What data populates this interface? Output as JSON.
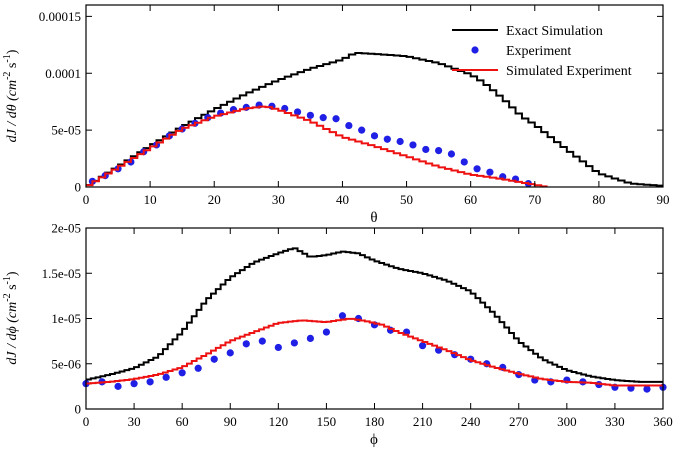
{
  "colors": {
    "exact": "#000000",
    "experiment": "#1f1fe6",
    "simulated": "#ee1111"
  },
  "legend": {
    "exact": "Exact Simulation",
    "experiment": "Experiment",
    "simulated": "Simulated Experiment"
  },
  "chart_data": [
    {
      "type": "line",
      "id": "theta",
      "xlabel": "θ",
      "ylabel_main": "dJ / dθ (cm",
      "ylabel_exp1": "-2",
      "ylabel_mid": " s",
      "ylabel_exp2": "-1",
      "ylabel_end": ")",
      "xlim": [
        0,
        90
      ],
      "ylim": [
        0,
        0.00016
      ],
      "xticks": [
        0,
        10,
        20,
        30,
        40,
        50,
        60,
        70,
        80,
        90
      ],
      "xtick_labels": [
        "0",
        "10",
        "20",
        "30",
        "40",
        "50",
        "60",
        "70",
        "80",
        "90"
      ],
      "yticks": [
        0,
        5e-05,
        0.0001,
        0.00015
      ],
      "ytick_labels": [
        "0",
        "5e-05",
        "0.0001",
        "0.00015"
      ],
      "legend_position": "top-right",
      "series": [
        {
          "name": "Exact Simulation",
          "style": "step",
          "x": [
            0,
            5,
            10,
            15,
            20,
            25,
            30,
            35,
            40,
            42,
            45,
            50,
            55,
            60,
            62,
            65,
            68,
            70,
            72,
            75,
            80,
            85,
            90
          ],
          "y": [
            0,
            1.8e-05,
            3.6e-05,
            5.3e-05,
            6.8e-05,
            8.2e-05,
            9.4e-05,
            0.000104,
            0.000112,
            0.000118,
            0.000117,
            0.000115,
            0.000109,
            9.9e-05,
            9.2e-05,
            7.8e-05,
            6.2e-05,
            5.5e-05,
            4.6e-05,
            3.3e-05,
            1.2e-05,
            3e-06,
            1e-06
          ]
        },
        {
          "name": "Experiment",
          "style": "points",
          "x": [
            1,
            3,
            5,
            7,
            9,
            11,
            13,
            15,
            17,
            19,
            21,
            23,
            25,
            27,
            29,
            31,
            33,
            35,
            37,
            39,
            41,
            43,
            45,
            47,
            49,
            51,
            53,
            55,
            57,
            59,
            61,
            63,
            65,
            67,
            69
          ],
          "y": [
            5e-06,
            1e-05,
            1.6e-05,
            2.2e-05,
            3.1e-05,
            3.7e-05,
            4.5e-05,
            5.1e-05,
            5.6e-05,
            6.1e-05,
            6.5e-05,
            6.8e-05,
            7e-05,
            7.2e-05,
            7.1e-05,
            6.9e-05,
            6.6e-05,
            6.3e-05,
            6.1e-05,
            6e-05,
            5.4e-05,
            5e-05,
            4.5e-05,
            4.2e-05,
            4e-05,
            3.7e-05,
            3.3e-05,
            3.2e-05,
            2.9e-05,
            2.2e-05,
            1.6e-05,
            1.3e-05,
            9e-06,
            7e-06,
            3e-06
          ]
        },
        {
          "name": "Simulated Experiment",
          "style": "step",
          "x": [
            0,
            5,
            10,
            15,
            20,
            25,
            28,
            30,
            35,
            40,
            45,
            50,
            55,
            60,
            65,
            70,
            72
          ],
          "y": [
            0,
            1.7e-05,
            3.4e-05,
            5.1e-05,
            6.2e-05,
            6.9e-05,
            7.1e-05,
            6.8e-05,
            5.8e-05,
            4.4e-05,
            3.6e-05,
            2.7e-05,
            1.8e-05,
            1.1e-05,
            7e-06,
            2e-06,
            0
          ]
        }
      ]
    },
    {
      "type": "line",
      "id": "phi",
      "xlabel": "ϕ",
      "ylabel_main": "dJ / dϕ (cm",
      "ylabel_exp1": "-2",
      "ylabel_mid": " s",
      "ylabel_exp2": "-1",
      "ylabel_end": ")",
      "xlim": [
        0,
        360
      ],
      "ylim": [
        0,
        2e-05
      ],
      "xticks": [
        0,
        30,
        60,
        90,
        120,
        150,
        180,
        210,
        240,
        270,
        300,
        330,
        360
      ],
      "xtick_labels": [
        "0",
        "30",
        "60",
        "90",
        "120",
        "150",
        "180",
        "210",
        "240",
        "270",
        "300",
        "330",
        "360"
      ],
      "yticks": [
        0,
        5e-06,
        1e-05,
        1.5e-05,
        2e-05
      ],
      "ytick_labels": [
        "0",
        "5e-06",
        "1e-05",
        "1.5e-05",
        "2e-05"
      ],
      "series": [
        {
          "name": "Exact Simulation",
          "style": "step",
          "x": [
            0,
            15,
            30,
            45,
            60,
            75,
            90,
            105,
            120,
            130,
            140,
            150,
            160,
            170,
            180,
            195,
            210,
            225,
            240,
            255,
            270,
            285,
            300,
            315,
            330,
            345,
            360
          ],
          "y": [
            3.2e-06,
            3.8e-06,
            4.5e-06,
            5.8e-06,
            8.5e-06,
            1.2e-05,
            1.45e-05,
            1.62e-05,
            1.72e-05,
            1.78e-05,
            1.68e-05,
            1.7e-05,
            1.74e-05,
            1.72e-05,
            1.64e-05,
            1.55e-05,
            1.5e-05,
            1.42e-05,
            1.3e-05,
            1.05e-05,
            7.5e-06,
            5.5e-06,
            4.3e-06,
            3.6e-06,
            3.2e-06,
            3e-06,
            3e-06
          ]
        },
        {
          "name": "Experiment",
          "style": "points",
          "x": [
            0,
            10,
            20,
            30,
            40,
            50,
            60,
            70,
            80,
            90,
            100,
            110,
            120,
            130,
            140,
            150,
            160,
            170,
            180,
            190,
            200,
            210,
            220,
            230,
            240,
            250,
            260,
            270,
            280,
            290,
            300,
            310,
            320,
            330,
            340,
            350,
            360
          ],
          "y": [
            2.8e-06,
            3e-06,
            2.5e-06,
            2.8e-06,
            3e-06,
            3.5e-06,
            4e-06,
            4.5e-06,
            5.5e-06,
            6.2e-06,
            7.2e-06,
            7.5e-06,
            6.8e-06,
            7.3e-06,
            7.8e-06,
            8.5e-06,
            1.03e-05,
            1e-05,
            9.3e-06,
            8.7e-06,
            8.5e-06,
            7e-06,
            6.5e-06,
            6e-06,
            5.5e-06,
            5e-06,
            4.6e-06,
            3.8e-06,
            3.2e-06,
            3e-06,
            3.2e-06,
            3e-06,
            2.7e-06,
            2.4e-06,
            2.3e-06,
            2.2e-06,
            2.4e-06
          ]
        },
        {
          "name": "Simulated Experiment",
          "style": "step",
          "x": [
            0,
            15,
            30,
            45,
            60,
            75,
            90,
            105,
            120,
            135,
            150,
            165,
            175,
            185,
            195,
            210,
            225,
            240,
            255,
            270,
            285,
            300,
            315,
            330,
            345,
            360
          ],
          "y": [
            2.8e-06,
            3e-06,
            3.3e-06,
            3.8e-06,
            4.6e-06,
            6e-06,
            7.5e-06,
            8.5e-06,
            9.5e-06,
            9.8e-06,
            9.6e-06,
            1e-05,
            9.7e-06,
            9.3e-06,
            8.5e-06,
            7.5e-06,
            6.5e-06,
            5.4e-06,
            4.6e-06,
            3.9e-06,
            3.3e-06,
            3e-06,
            2.9e-06,
            2.6e-06,
            2.6e-06,
            2.6e-06
          ]
        }
      ]
    }
  ]
}
